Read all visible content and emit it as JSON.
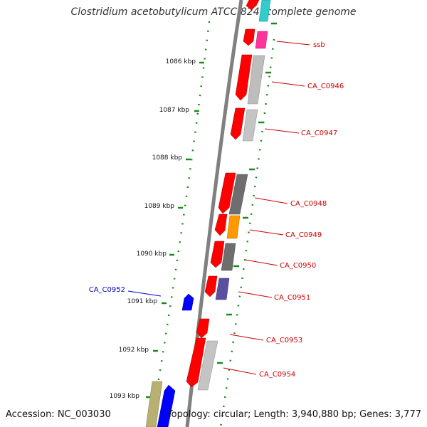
{
  "title": "Clostridium acetobutylicum ATCC 824, complete genome",
  "footer": {
    "accession": "Accession: NC_003030",
    "summary": "Topology: circular; Length: 3,940,880 bp; Genes: 3,777"
  },
  "scale_labels": [
    "1086 kbp",
    "1087 kbp",
    "1088 kbp",
    "1089 kbp",
    "1090 kbp",
    "1091 kbp",
    "1092 kbp",
    "1093 kbp"
  ],
  "gene_labels": [
    {
      "name": "ssb",
      "color": "#cc0000"
    },
    {
      "name": "CA_C0946",
      "color": "#cc0000"
    },
    {
      "name": "CA_C0947",
      "color": "#cc0000"
    },
    {
      "name": "CA_C0948",
      "color": "#cc0000"
    },
    {
      "name": "CA_C0949",
      "color": "#cc0000"
    },
    {
      "name": "CA_C0950",
      "color": "#cc0000"
    },
    {
      "name": "CA_C0951",
      "color": "#cc0000"
    },
    {
      "name": "CA_C0953",
      "color": "#cc0000"
    },
    {
      "name": "CA_C0954",
      "color": "#cc0000"
    },
    {
      "name": "CA_C0952",
      "color": "#0000cc"
    }
  ],
  "colors": {
    "cds": "#ff0000",
    "reverse": "#0000ff",
    "backbone": "#808080",
    "tick": "#1a8c1a",
    "gray_light": "#bdbdbd",
    "gray_dark": "#6e6e6e",
    "orange": "#ff9900",
    "purple": "#5a4fa0",
    "pink": "#ff3399",
    "cyan": "#33cccc",
    "olive": "#b8b070"
  }
}
